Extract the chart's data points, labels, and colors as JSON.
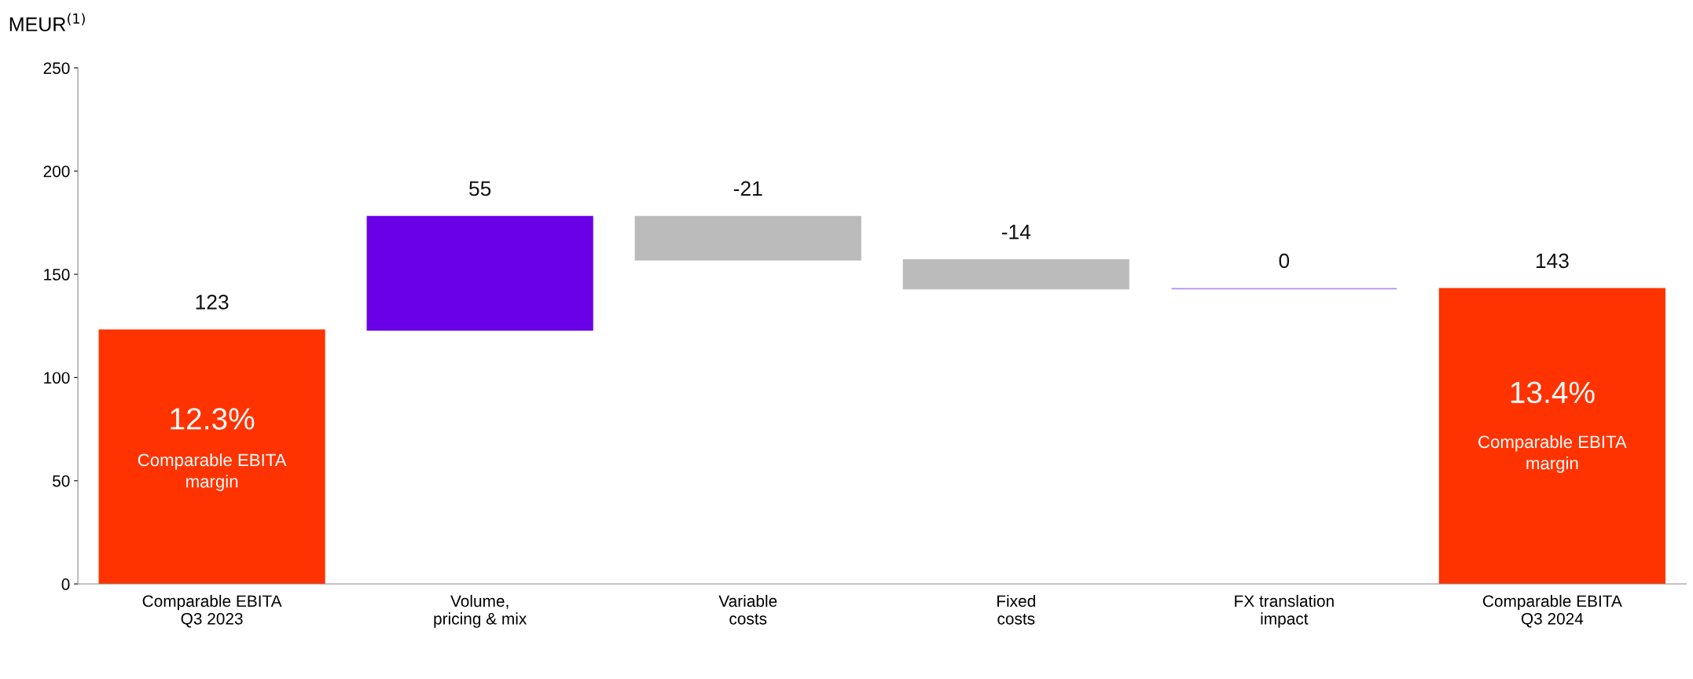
{
  "chart_data": {
    "type": "bar",
    "ylabel": "MEUR$^{(1)}$",
    "categories": [
      "Comparable EBITA\nQ3 2023",
      "Volume,\npricing & mix",
      "Variable\ncosts",
      "Fixed\ncosts",
      "FX translation\nimpact",
      "Comparable EBITA\nQ3 2024"
    ],
    "values": [
      123,
      55,
      -21,
      -14,
      0,
      143
    ],
    "base": [
      0,
      123,
      178,
      157,
      143,
      0
    ],
    "colors": [
      "#ff3300",
      "#6a00e8",
      "#bbbbbb",
      "#bbbbbb",
      "#b38cf5",
      "#ff3300"
    ],
    "data_labels": true,
    "ylim": [
      0,
      250
    ],
    "yticks": [
      0,
      50,
      100,
      150,
      200,
      250
    ],
    "grid": false,
    "annotations": [
      "12.3%",
      "Comparable EBITA\nmargin",
      "13.4%",
      "Comparable EBITA\nmargin"
    ]
  }
}
